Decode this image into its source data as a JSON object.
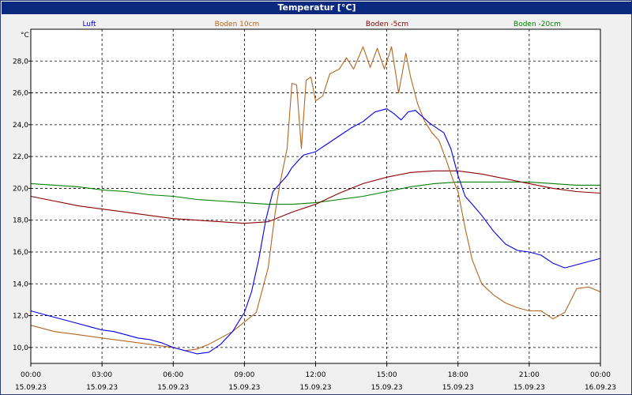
{
  "window": {
    "title": "Temperatur [°C]"
  },
  "colors": {
    "Luft": "#0000e6",
    "Boden 10cm": "#b5651d",
    "Boden -5cm": "#8b0000",
    "Boden -20cm": "#008000"
  },
  "chart_data": {
    "type": "line",
    "title": "Temperatur [°C]",
    "ylabel": "°C",
    "xlabel": "",
    "ylim": [
      9.0,
      30.0
    ],
    "xlim": [
      0,
      24
    ],
    "grid": true,
    "legend_placement": "top",
    "y_ticks": [
      "10,0",
      "12,0",
      "14,0",
      "16,0",
      "18,0",
      "20,0",
      "22,0",
      "24,0",
      "26,0",
      "28,0"
    ],
    "x_ticks": [
      {
        "time": "00:00",
        "date": "15.09.23"
      },
      {
        "time": "03:00",
        "date": "15.09.23"
      },
      {
        "time": "06:00",
        "date": "15.09.23"
      },
      {
        "time": "09:00",
        "date": "15.09.23"
      },
      {
        "time": "12:00",
        "date": "15.09.23"
      },
      {
        "time": "15:00",
        "date": "15.09.23"
      },
      {
        "time": "18:00",
        "date": "15.09.23"
      },
      {
        "time": "21:00",
        "date": "15.09.23"
      },
      {
        "time": "00:00",
        "date": "16.09.23"
      }
    ],
    "series": [
      {
        "name": "Luft",
        "x": [
          0,
          0.5,
          1,
          1.5,
          2,
          2.5,
          3,
          3.5,
          4,
          4.5,
          5,
          5.5,
          6,
          6.5,
          7,
          7.5,
          8,
          8.5,
          9,
          9.3,
          9.6,
          9.9,
          10.2,
          10.5,
          10.8,
          11,
          11.3,
          11.5,
          12,
          12.5,
          13,
          13.5,
          14,
          14.5,
          15,
          15.3,
          15.6,
          15.9,
          16.2,
          16.5,
          16.8,
          17.1,
          17.4,
          17.7,
          18,
          18.3,
          18.6,
          19,
          19.5,
          20,
          20.5,
          21,
          21.5,
          22,
          22.5,
          23,
          23.5,
          24
        ],
        "y": [
          12.3,
          12.1,
          11.9,
          11.7,
          11.5,
          11.3,
          11.1,
          11.0,
          10.8,
          10.6,
          10.5,
          10.3,
          10.0,
          9.8,
          9.6,
          9.7,
          10.2,
          11.0,
          12.2,
          13.5,
          15.5,
          18.0,
          19.8,
          20.3,
          20.8,
          21.3,
          21.8,
          22.1,
          22.3,
          22.8,
          23.3,
          23.8,
          24.2,
          24.8,
          25.0,
          24.7,
          24.3,
          24.8,
          24.9,
          24.5,
          24.1,
          23.8,
          23.5,
          22.5,
          20.8,
          19.5,
          19.0,
          18.3,
          17.3,
          16.5,
          16.1,
          16.0,
          15.8,
          15.3,
          15.0,
          15.2,
          15.4,
          15.6
        ]
      },
      {
        "name": "Boden 10cm",
        "x": [
          0,
          0.5,
          1,
          1.5,
          2,
          3,
          4,
          5,
          6,
          6.5,
          7,
          7.5,
          8,
          8.5,
          9,
          9.5,
          10,
          10.3,
          10.5,
          10.8,
          11.0,
          11.2,
          11.4,
          11.6,
          11.8,
          12.0,
          12.3,
          12.6,
          13.0,
          13.3,
          13.6,
          14.0,
          14.3,
          14.6,
          14.9,
          15.2,
          15.5,
          15.8,
          16.0,
          16.3,
          16.6,
          16.9,
          17.2,
          17.5,
          17.8,
          18.0,
          18.3,
          18.6,
          19.0,
          19.5,
          20.0,
          20.5,
          21.0,
          21.5,
          22.0,
          22.5,
          23.0,
          23.5,
          24
        ],
        "y": [
          11.4,
          11.2,
          11.0,
          10.9,
          10.8,
          10.6,
          10.4,
          10.2,
          10.0,
          9.8,
          9.9,
          10.2,
          10.6,
          11.0,
          11.6,
          12.2,
          15.0,
          18.5,
          20.3,
          22.5,
          26.6,
          26.5,
          22.5,
          26.8,
          27.0,
          25.5,
          25.8,
          27.2,
          27.5,
          28.2,
          27.5,
          28.9,
          27.6,
          28.8,
          27.5,
          28.9,
          26.0,
          28.5,
          27.0,
          25.3,
          24.2,
          23.5,
          23.0,
          21.8,
          20.5,
          19.8,
          17.5,
          15.5,
          14.0,
          13.3,
          12.8,
          12.5,
          12.3,
          12.3,
          11.8,
          12.2,
          13.7,
          13.8,
          13.5
        ]
      },
      {
        "name": "Boden -5cm",
        "x": [
          0,
          1,
          2,
          3,
          4,
          5,
          6,
          7,
          8,
          9,
          10,
          11,
          12,
          13,
          14,
          15,
          16,
          17,
          18,
          19,
          20,
          21,
          22,
          23,
          24
        ],
        "y": [
          19.5,
          19.2,
          18.9,
          18.7,
          18.5,
          18.3,
          18.1,
          18.0,
          17.9,
          17.8,
          17.9,
          18.5,
          19.0,
          19.7,
          20.3,
          20.7,
          21.0,
          21.1,
          21.1,
          20.9,
          20.6,
          20.3,
          20.0,
          19.8,
          19.7
        ]
      },
      {
        "name": "Boden -20cm",
        "x": [
          0,
          1,
          2,
          3,
          4,
          5,
          6,
          7,
          8,
          9,
          10,
          11,
          12,
          13,
          14,
          15,
          16,
          17,
          18,
          19,
          20,
          21,
          22,
          23,
          24
        ],
        "y": [
          20.3,
          20.2,
          20.1,
          19.9,
          19.8,
          19.6,
          19.5,
          19.3,
          19.2,
          19.1,
          19.0,
          19.0,
          19.1,
          19.3,
          19.5,
          19.8,
          20.1,
          20.3,
          20.4,
          20.4,
          20.4,
          20.4,
          20.3,
          20.2,
          20.2
        ]
      }
    ]
  }
}
